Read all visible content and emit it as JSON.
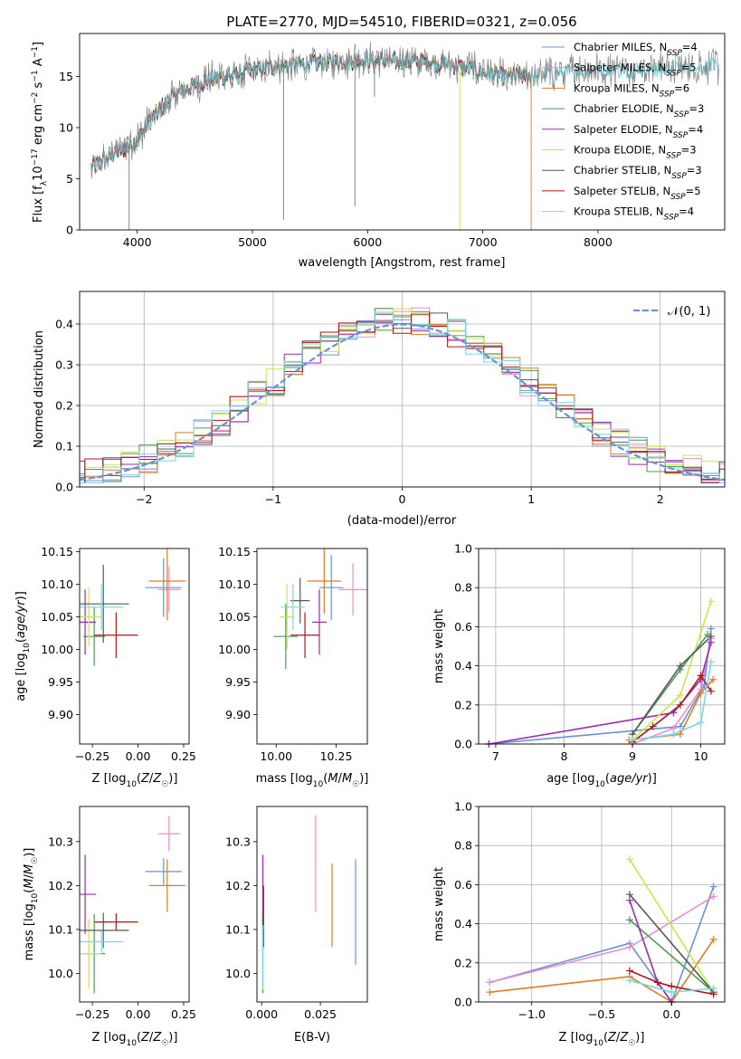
{
  "title": "PLATE=2770, MJD=54510, FIBERID=0321, z=0.056",
  "colors": {
    "Chabrier MILES": "#6a92d6",
    "Salpeter MILES": "#e88fc6",
    "Kroupa MILES": "#e07b23",
    "Chabrier ELODIE": "#4d9a55",
    "Salpeter ELODIE": "#9a2ab0",
    "Kroupa ELODIE": "#c8e84a",
    "Chabrier STELIB": "#585858",
    "Salpeter STELIB": "#b01515",
    "Kroupa STELIB": "#77d8e3",
    "normal": "#6a92d6",
    "grid": "#b0b0b0"
  },
  "chart_data": [
    {
      "id": "spectrum",
      "type": "line",
      "title": "PLATE=2770, MJD=54510, FIBERID=0321, z=0.056",
      "xlabel": "wavelength [Angstrom, rest frame]",
      "ylabel_parts": [
        "Flux [f",
        "λ",
        "10",
        "−17",
        " erg cm",
        "−2",
        " s",
        "−1",
        " A",
        "−1",
        "]"
      ],
      "xlim": [
        3500,
        9100
      ],
      "ylim": [
        0,
        19.2
      ],
      "xticks": [
        4000,
        5000,
        6000,
        7000,
        8000
      ],
      "yticks": [
        0,
        5,
        10,
        15
      ],
      "grid": false,
      "legend_position": "top-right",
      "legend": [
        {
          "label": "Chabrier MILES, N",
          "sub": "SSP",
          "tail": "=4"
        },
        {
          "label": "Salpeter MILES, N",
          "sub": "SSP",
          "tail": "=5"
        },
        {
          "label": "Kroupa MILES, N",
          "sub": "SSP",
          "tail": "=6"
        },
        {
          "label": "Chabrier ELODIE, N",
          "sub": "SSP",
          "tail": "=3"
        },
        {
          "label": "Salpeter ELODIE, N",
          "sub": "SSP",
          "tail": "=4"
        },
        {
          "label": "Kroupa ELODIE, N",
          "sub": "SSP",
          "tail": "=3"
        },
        {
          "label": "Chabrier STELIB, N",
          "sub": "SSP",
          "tail": "=3"
        },
        {
          "label": "Salpeter STELIB, N",
          "sub": "SSP",
          "tail": "=5"
        },
        {
          "label": "Kroupa STELIB, N",
          "sub": "SSP",
          "tail": "=4"
        }
      ],
      "continuum": {
        "x": [
          3600,
          3700,
          3800,
          3900,
          4000,
          4100,
          4200,
          4300,
          4400,
          4600,
          4800,
          5000,
          5200,
          5500,
          6000,
          6500,
          6700,
          7000,
          7200,
          7600,
          8000,
          8500,
          9000
        ],
        "y": [
          6.0,
          6.8,
          7.5,
          8.0,
          8.8,
          10.5,
          11.8,
          13.0,
          13.6,
          14.6,
          15.0,
          15.6,
          16.0,
          16.3,
          16.6,
          16.4,
          16.2,
          15.4,
          14.9,
          15.3,
          15.6,
          15.8,
          16.0
        ]
      },
      "dips": [
        {
          "x": 3930,
          "y": 0
        },
        {
          "x": 5270,
          "y": 1
        },
        {
          "x": 5890,
          "y": 2.3
        },
        {
          "x": 6800,
          "y": 0
        },
        {
          "x": 7420,
          "y": 0
        },
        {
          "x": 6060,
          "y": 13
        }
      ]
    },
    {
      "id": "residuals",
      "type": "step",
      "xlabel": "(data-model)/error",
      "ylabel": "Normed distribution",
      "xlim": [
        -2.5,
        2.5
      ],
      "ylim": [
        0,
        0.48
      ],
      "xticks": [
        -2,
        -1,
        0,
        1,
        2
      ],
      "yticks": [
        0.0,
        0.1,
        0.2,
        0.3,
        0.4
      ],
      "grid": true,
      "legend_position": "top-right",
      "legend_label": "𝒩(0, 1)"
    },
    {
      "id": "age-vs-Z",
      "type": "scatter",
      "xlabel": "Z [log10(Z/Z☉)]",
      "ylabel": "age  [log10(age/yr)]",
      "xlim": [
        -0.32,
        0.28
      ],
      "ylim": [
        9.855,
        10.155
      ],
      "xticks": [
        -0.25,
        0.0,
        0.25
      ],
      "yticks": [
        9.9,
        9.95,
        10.0,
        10.05,
        10.1,
        10.15
      ],
      "grid": false,
      "points": [
        {
          "model": "Chabrier MILES",
          "x": 0.14,
          "y": 10.095,
          "xerr": 0.1,
          "yerr": 0.045
        },
        {
          "model": "Salpeter MILES",
          "x": 0.17,
          "y": 10.092,
          "xerr": 0.06,
          "yerr": 0.035
        },
        {
          "model": "Kroupa MILES",
          "x": 0.16,
          "y": 10.105,
          "xerr": 0.1,
          "yerr": 0.06
        },
        {
          "model": "Chabrier ELODIE",
          "x": -0.24,
          "y": 10.02,
          "xerr": 0.06,
          "yerr": 0.045
        },
        {
          "model": "Salpeter ELODIE",
          "x": -0.29,
          "y": 10.042,
          "xerr": 0.06,
          "yerr": 0.05
        },
        {
          "model": "Kroupa ELODIE",
          "x": -0.27,
          "y": 10.05,
          "xerr": 0.07,
          "yerr": 0.045
        },
        {
          "model": "Chabrier STELIB",
          "x": -0.19,
          "y": 10.07,
          "xerr": 0.14,
          "yerr": 0.06
        },
        {
          "model": "Salpeter STELIB",
          "x": -0.12,
          "y": 10.022,
          "xerr": 0.12,
          "yerr": 0.035
        },
        {
          "model": "Kroupa STELIB",
          "x": -0.2,
          "y": 10.065,
          "xerr": 0.12,
          "yerr": 0.035
        }
      ]
    },
    {
      "id": "age-vs-mass",
      "type": "scatter",
      "xlabel": "mass [log10(M/M☉)]",
      "xlim": [
        9.92,
        10.38
      ],
      "ylim": [
        9.855,
        10.155
      ],
      "xticks": [
        10.0,
        10.25
      ],
      "yticks": [
        9.9,
        9.95,
        10.0,
        10.05,
        10.1,
        10.15
      ],
      "grid": false,
      "points": [
        {
          "model": "Chabrier MILES",
          "x": 10.23,
          "y": 10.095,
          "xerr": 0.05,
          "yerr": 0.05
        },
        {
          "model": "Salpeter MILES",
          "x": 10.32,
          "y": 10.092,
          "xerr": 0.06,
          "yerr": 0.04
        },
        {
          "model": "Kroupa MILES",
          "x": 10.2,
          "y": 10.105,
          "xerr": 0.07,
          "yerr": 0.05
        },
        {
          "model": "Chabrier ELODIE",
          "x": 10.04,
          "y": 10.02,
          "xerr": 0.05,
          "yerr": 0.05
        },
        {
          "model": "Salpeter ELODIE",
          "x": 10.18,
          "y": 10.042,
          "xerr": 0.03,
          "yerr": 0.05
        },
        {
          "model": "Kroupa ELODIE",
          "x": 10.045,
          "y": 10.05,
          "xerr": 0.03,
          "yerr": 0.05
        },
        {
          "model": "Chabrier STELIB",
          "x": 10.1,
          "y": 10.075,
          "xerr": 0.04,
          "yerr": 0.035
        },
        {
          "model": "Salpeter STELIB",
          "x": 10.12,
          "y": 10.022,
          "xerr": 0.06,
          "yerr": 0.035
        },
        {
          "model": "Kroupa STELIB",
          "x": 10.07,
          "y": 10.065,
          "xerr": 0.05,
          "yerr": 0.035
        }
      ]
    },
    {
      "id": "weight-vs-age",
      "type": "line",
      "xlabel": "age  [log10(age/yr)]",
      "ylabel": "mass weight",
      "xlim": [
        6.75,
        10.35
      ],
      "ylim": [
        0,
        1
      ],
      "xticks": [
        7,
        8,
        9,
        10
      ],
      "yticks": [
        0.0,
        0.2,
        0.4,
        0.6,
        0.8,
        1.0
      ],
      "grid": true,
      "series": [
        {
          "model": "Chabrier MILES",
          "x": [
            6.9,
            9.7,
            10.05,
            10.15
          ],
          "y": [
            0.0,
            0.09,
            0.3,
            0.59
          ]
        },
        {
          "model": "Salpeter MILES",
          "x": [
            9.0,
            9.6,
            10.0,
            10.15
          ],
          "y": [
            0.0,
            0.08,
            0.28,
            0.54
          ]
        },
        {
          "model": "Kroupa MILES",
          "x": [
            8.95,
            9.7,
            10.0,
            10.18
          ],
          "y": [
            0.02,
            0.05,
            0.26,
            0.33
          ]
        },
        {
          "model": "Chabrier ELODIE",
          "x": [
            9.0,
            9.7,
            10.1
          ],
          "y": [
            0.05,
            0.38,
            0.56
          ]
        },
        {
          "model": "Salpeter ELODIE",
          "x": [
            6.9,
            9.6,
            10.0,
            10.15
          ],
          "y": [
            0.0,
            0.16,
            0.33,
            0.52
          ]
        },
        {
          "model": "Kroupa ELODIE",
          "x": [
            9.0,
            9.7,
            10.15
          ],
          "y": [
            0.02,
            0.25,
            0.73
          ]
        },
        {
          "model": "Chabrier STELIB",
          "x": [
            9.0,
            9.7,
            10.15
          ],
          "y": [
            0.05,
            0.4,
            0.55
          ]
        },
        {
          "model": "Salpeter STELIB",
          "x": [
            9.0,
            9.3,
            9.7,
            10.0,
            10.15
          ],
          "y": [
            0.01,
            0.09,
            0.2,
            0.35,
            0.27
          ]
        },
        {
          "model": "Kroupa STELIB",
          "x": [
            9.0,
            9.6,
            10.0,
            10.15
          ],
          "y": [
            0.02,
            0.05,
            0.11,
            0.42
          ]
        }
      ]
    },
    {
      "id": "mass-vs-Z",
      "type": "scatter",
      "xlabel": "Z [log10(Z/Z☉)]",
      "ylabel": "mass [log10(M/M☉)]",
      "xlim": [
        -0.32,
        0.28
      ],
      "ylim": [
        9.935,
        10.38
      ],
      "xticks": [
        -0.25,
        0.0,
        0.25
      ],
      "yticks": [
        10.0,
        10.1,
        10.2,
        10.3
      ],
      "grid": false,
      "points": [
        {
          "model": "Chabrier MILES",
          "x": 0.14,
          "y": 10.232,
          "xerr": 0.1,
          "yerr": 0.03
        },
        {
          "model": "Salpeter MILES",
          "x": 0.17,
          "y": 10.318,
          "xerr": 0.06,
          "yerr": 0.04
        },
        {
          "model": "Kroupa MILES",
          "x": 0.16,
          "y": 10.2,
          "xerr": 0.1,
          "yerr": 0.06
        },
        {
          "model": "Chabrier ELODIE",
          "x": -0.24,
          "y": 10.045,
          "xerr": 0.06,
          "yerr": 0.09
        },
        {
          "model": "Salpeter ELODIE",
          "x": -0.29,
          "y": 10.18,
          "xerr": 0.06,
          "yerr": 0.09
        },
        {
          "model": "Kroupa ELODIE",
          "x": -0.27,
          "y": 10.045,
          "xerr": 0.07,
          "yerr": 0.08
        },
        {
          "model": "Chabrier STELIB",
          "x": -0.19,
          "y": 10.098,
          "xerr": 0.14,
          "yerr": 0.04
        },
        {
          "model": "Salpeter STELIB",
          "x": -0.12,
          "y": 10.117,
          "xerr": 0.12,
          "yerr": 0.02
        },
        {
          "model": "Kroupa STELIB",
          "x": -0.2,
          "y": 10.072,
          "xerr": 0.12,
          "yerr": 0.025
        }
      ]
    },
    {
      "id": "mass-vs-EBV",
      "type": "scatter",
      "xlabel": "E(B-V)",
      "xlim": [
        -0.002,
        0.045
      ],
      "ylim": [
        9.935,
        10.38
      ],
      "xticks": [
        0.0,
        0.025
      ],
      "yticks": [
        10.0,
        10.1,
        10.2,
        10.3
      ],
      "grid": false,
      "points": [
        {
          "model": "Chabrier MILES",
          "x": 0.04,
          "y": 10.14,
          "yerr": 0.12
        },
        {
          "model": "Salpeter MILES",
          "x": 0.023,
          "y": 10.25,
          "yerr": 0.11
        },
        {
          "model": "Kroupa MILES",
          "x": 0.03,
          "y": 10.155,
          "yerr": 0.095
        },
        {
          "model": "Chabrier ELODIE",
          "x": 0.0005,
          "y": 10.045,
          "yerr": 0.09
        },
        {
          "model": "Salpeter ELODIE",
          "x": 0.0005,
          "y": 10.18,
          "yerr": 0.09
        },
        {
          "model": "Kroupa ELODIE",
          "x": 0.0005,
          "y": 10.045,
          "yerr": 0.08
        },
        {
          "model": "Chabrier STELIB",
          "x": 0.0005,
          "y": 10.098,
          "yerr": 0.04
        },
        {
          "model": "Salpeter STELIB",
          "x": 0.0008,
          "y": 10.13,
          "yerr": 0.07
        },
        {
          "model": "Kroupa STELIB",
          "x": 0.0005,
          "y": 10.04,
          "yerr": 0.07
        }
      ]
    },
    {
      "id": "weight-vs-Z",
      "type": "line",
      "xlabel": "Z [log10(Z/Z☉)]",
      "ylabel": "mass weight",
      "xlim": [
        -1.38,
        0.38
      ],
      "ylim": [
        0,
        1
      ],
      "xticks": [
        -1.0,
        -0.5,
        0.0
      ],
      "yticks": [
        0.0,
        0.2,
        0.4,
        0.6,
        0.8,
        1.0
      ],
      "grid": true,
      "series": [
        {
          "model": "Chabrier MILES",
          "x": [
            -1.3,
            -0.3,
            0.0,
            0.3
          ],
          "y": [
            0.1,
            0.3,
            0.0,
            0.59
          ]
        },
        {
          "model": "Salpeter MILES",
          "x": [
            -1.3,
            -0.3,
            0.3
          ],
          "y": [
            0.1,
            0.28,
            0.54
          ]
        },
        {
          "model": "Kroupa MILES",
          "x": [
            -1.3,
            -0.3,
            0.0,
            0.3
          ],
          "y": [
            0.05,
            0.13,
            0.0,
            0.32
          ]
        },
        {
          "model": "Chabrier ELODIE",
          "x": [
            -0.3,
            0.3
          ],
          "y": [
            0.42,
            0.05
          ]
        },
        {
          "model": "Salpeter ELODIE",
          "x": [
            -0.3,
            -0.1,
            0.0
          ],
          "y": [
            0.52,
            0.1,
            0.0
          ]
        },
        {
          "model": "Kroupa ELODIE",
          "x": [
            -0.3,
            0.3
          ],
          "y": [
            0.73,
            0.05
          ]
        },
        {
          "model": "Chabrier STELIB",
          "x": [
            -0.3,
            0.3
          ],
          "y": [
            0.55,
            0.05
          ]
        },
        {
          "model": "Salpeter STELIB",
          "x": [
            -0.3,
            -0.1,
            0.0,
            0.3
          ],
          "y": [
            0.16,
            0.1,
            0.08,
            0.04
          ]
        },
        {
          "model": "Kroupa STELIB",
          "x": [
            -0.3,
            0.0,
            0.3
          ],
          "y": [
            0.11,
            0.05,
            0.07
          ]
        }
      ]
    }
  ]
}
